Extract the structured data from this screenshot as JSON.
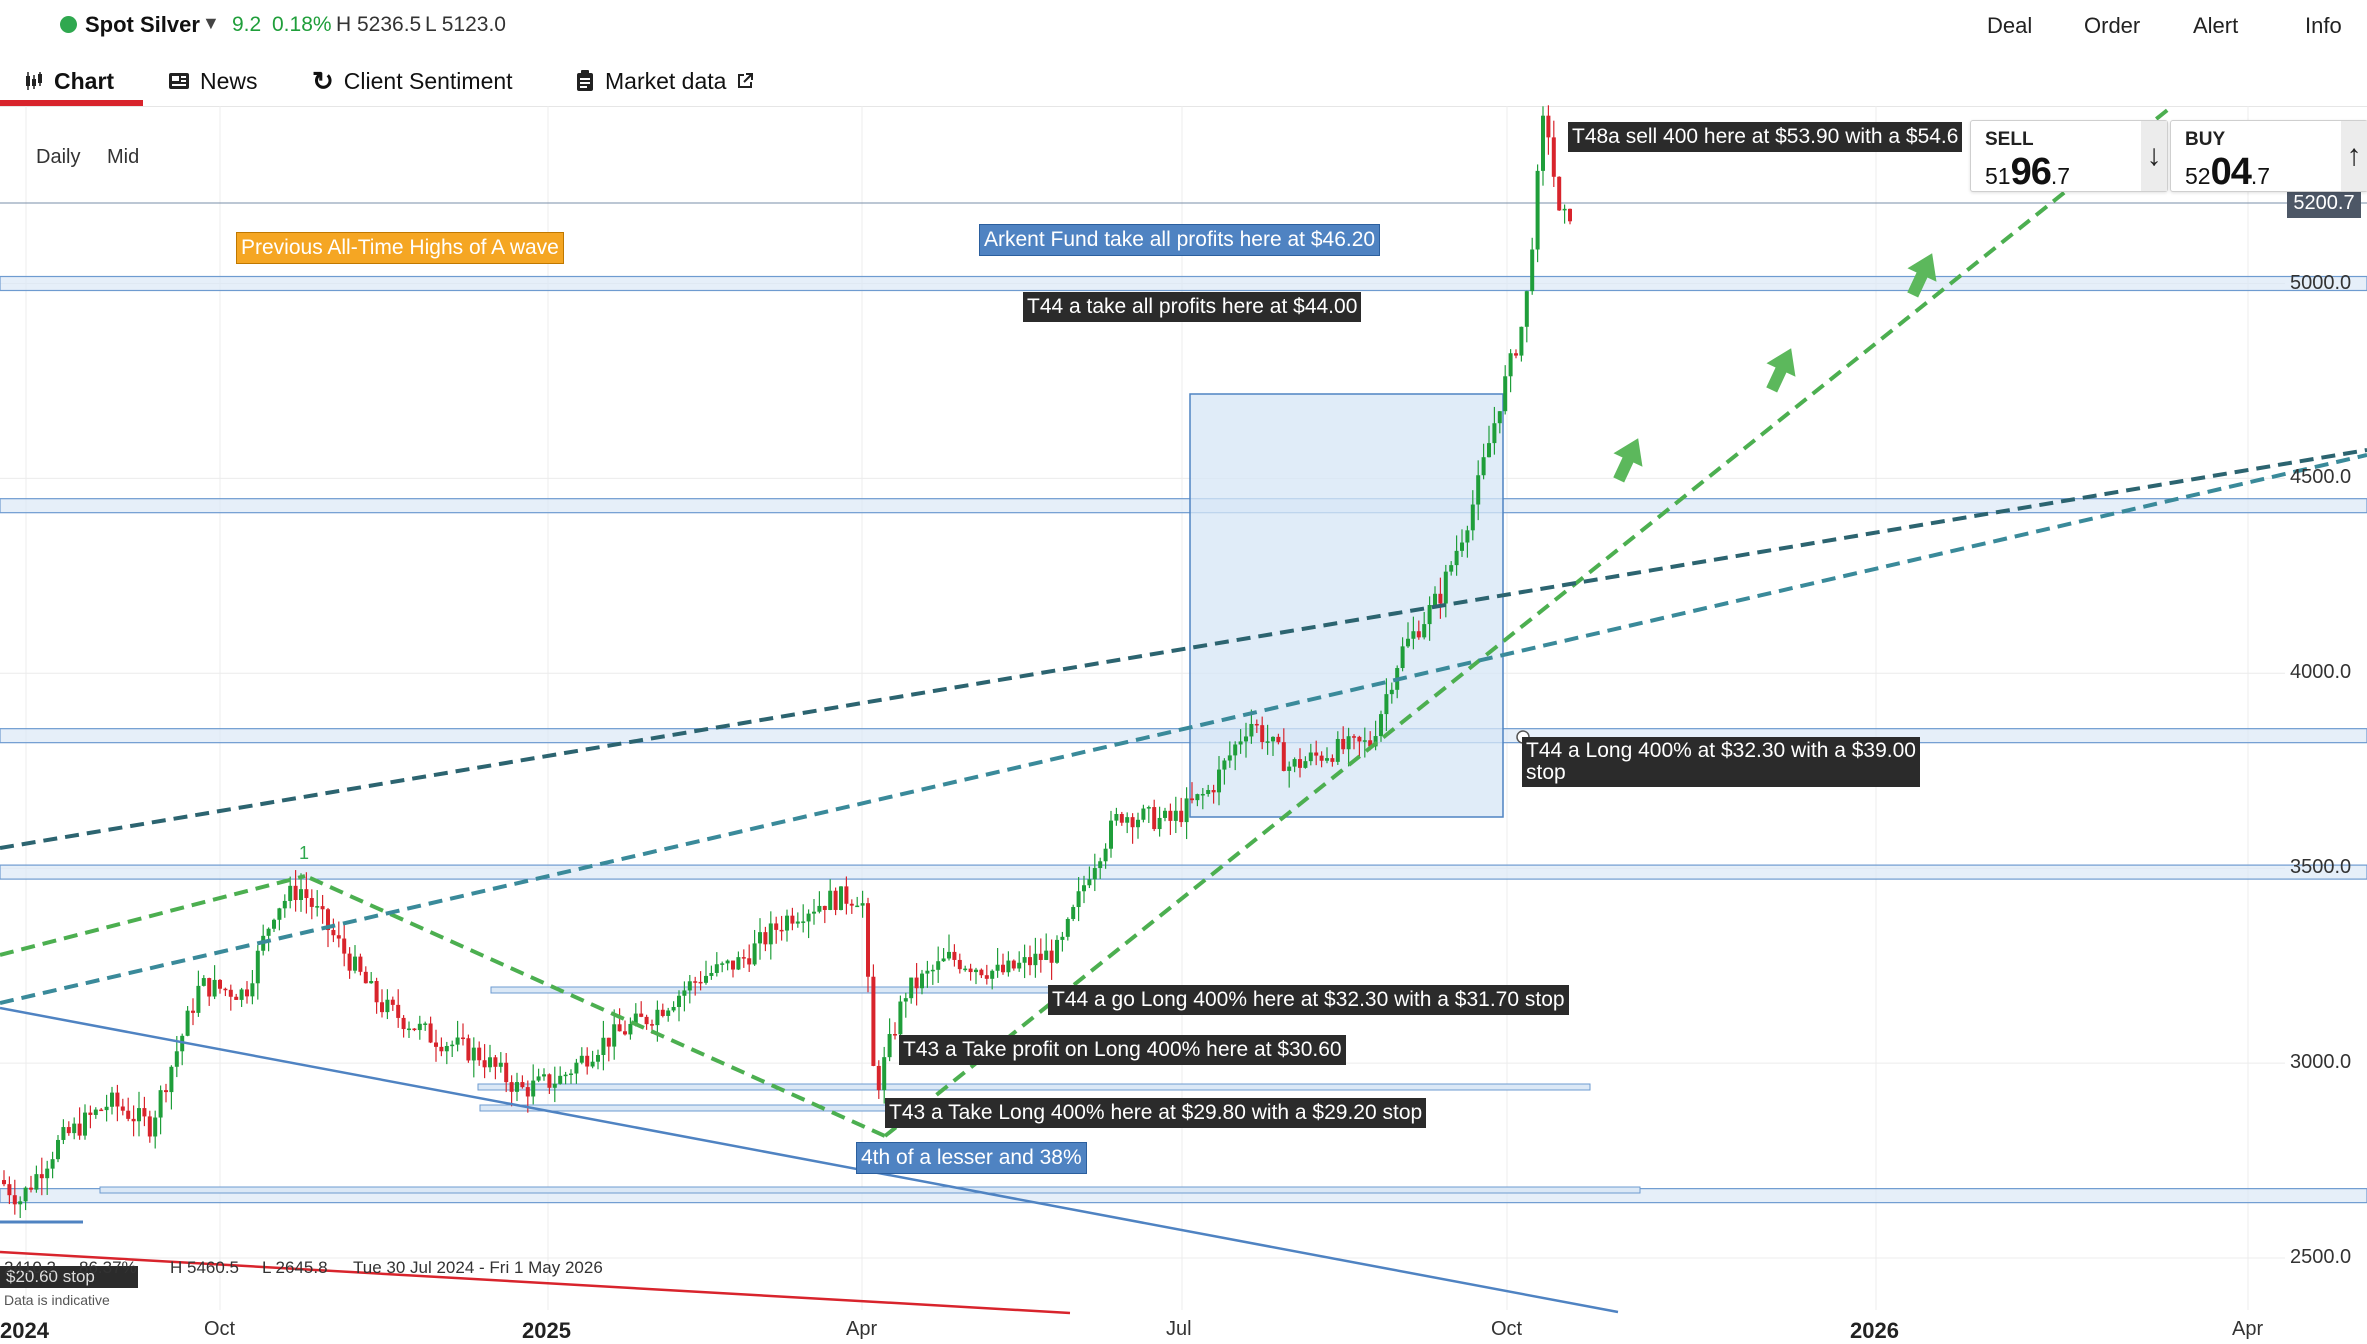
{
  "instrument": {
    "name": "Spot Silver",
    "change": "9.2",
    "change_pct": "0.18%",
    "high": "H 5236.5",
    "low": "L 5123.0",
    "status_color": "#2fa84f",
    "up_color": "#1f9e3a",
    "down_color": "#d8242c"
  },
  "header_actions": [
    "Deal",
    "Order",
    "Alert",
    "Info"
  ],
  "tabs": [
    {
      "label": "Chart",
      "icon": "candlestick-icon"
    },
    {
      "label": "News",
      "icon": "newspaper-icon"
    },
    {
      "label": "Client Sentiment",
      "icon": "refresh-icon"
    },
    {
      "label": "Market data",
      "icon": "clipboard-icon",
      "trailing_icon": "external-link-icon"
    }
  ],
  "chart_controls": {
    "interval": "Daily",
    "price_type": "Mid"
  },
  "tickets": {
    "sell": {
      "label": "SELL",
      "small": "51",
      "big": "96",
      "tail": ".7"
    },
    "buy": {
      "label": "BUY",
      "small": "52",
      "big": "04",
      "tail": ".7"
    }
  },
  "current_price": "5200.7",
  "chart_data": {
    "type": "candlestick",
    "y_ticks": [
      "5000.0",
      "4500.0",
      "4000.0",
      "3500.0",
      "3000.0",
      "2500.0"
    ],
    "x_ticks": [
      "2024",
      "Oct",
      "2025",
      "Apr",
      "Jul",
      "Oct",
      "2026",
      "Apr"
    ],
    "ylim": [
      2410,
      5500
    ],
    "series_summary": {
      "start": 2700,
      "low": 2645.8,
      "high": 5460.5,
      "last": 5200.7
    },
    "levels": [
      5000,
      4430,
      3840,
      3490,
      2660
    ],
    "annotations": [
      "T48a sell 400 here at $53.90 with a $54.6",
      "Previous All-Time Highs of A wave",
      "Arkent Fund take all profits here at $46.20",
      "T44 a take all profits here at $44.00",
      "T44 a Long 400% at $32.30 with a $39.00",
      "stop",
      "T44 a go Long 400% here at $32.30 with a $31.70 stop",
      "T43 a Take profit on Long 400% here at $30.60",
      "T43 a Take Long 400% here at $29.80 with a $29.20 stop",
      "4th of a lesser and 38%",
      "1"
    ]
  },
  "legend": {
    "range_value": "2410.2",
    "range_pct": "86.37%",
    "high": "H 5460.5",
    "low": "L 2645.8",
    "period": "Tue 30 Jul 2024 - Fri 1 May 2026",
    "stop_label": "$20.60 stop",
    "disclaimer": "Data is indicative"
  }
}
